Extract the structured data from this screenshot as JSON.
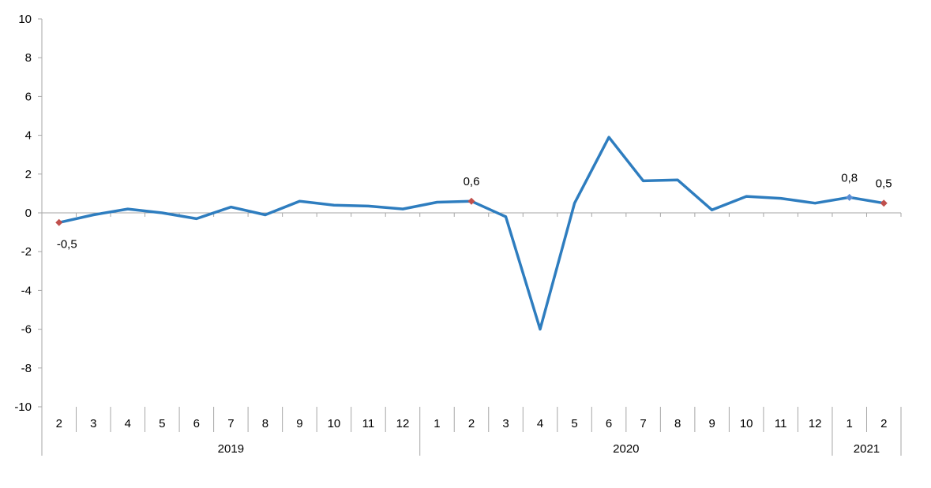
{
  "chart_data": {
    "type": "line",
    "title": "",
    "xlabel": "",
    "ylabel": "",
    "ylim": [
      -10,
      10
    ],
    "yticks": [
      "10",
      "8",
      "6",
      "4",
      "2",
      "0",
      "-2",
      "-4",
      "-6",
      "-8",
      "-10"
    ],
    "grid": false,
    "legend": "none",
    "x": [
      "2",
      "3",
      "4",
      "5",
      "6",
      "7",
      "8",
      "9",
      "10",
      "11",
      "12",
      "1",
      "2",
      "3",
      "4",
      "5",
      "6",
      "7",
      "8",
      "9",
      "10",
      "11",
      "12",
      "1",
      "2"
    ],
    "groups": [
      {
        "label": "2019",
        "count": 11
      },
      {
        "label": "2020",
        "count": 12
      },
      {
        "label": "2021",
        "count": 2
      }
    ],
    "series": [
      {
        "values": [
          -0.5,
          -0.1,
          0.2,
          0.0,
          -0.3,
          0.3,
          -0.1,
          0.6,
          0.4,
          0.35,
          0.2,
          0.55,
          0.6,
          -0.2,
          -6.0,
          0.5,
          3.9,
          1.65,
          1.7,
          0.15,
          0.85,
          0.75,
          0.5,
          0.8,
          0.5
        ],
        "color": "#2e7dbf"
      }
    ],
    "data_labels": [
      {
        "index": 0,
        "text": "-0,5",
        "marker_color": "#c0504d"
      },
      {
        "index": 12,
        "text": "0,6",
        "marker_color": "#c0504d"
      },
      {
        "index": 23,
        "text": "0,8",
        "marker_color": "#5b8fd6"
      },
      {
        "index": 24,
        "text": "0,5",
        "marker_color": "#c0504d"
      }
    ],
    "colors": {
      "line": "#2e7dbf",
      "axis": "#a6a6a6"
    }
  }
}
